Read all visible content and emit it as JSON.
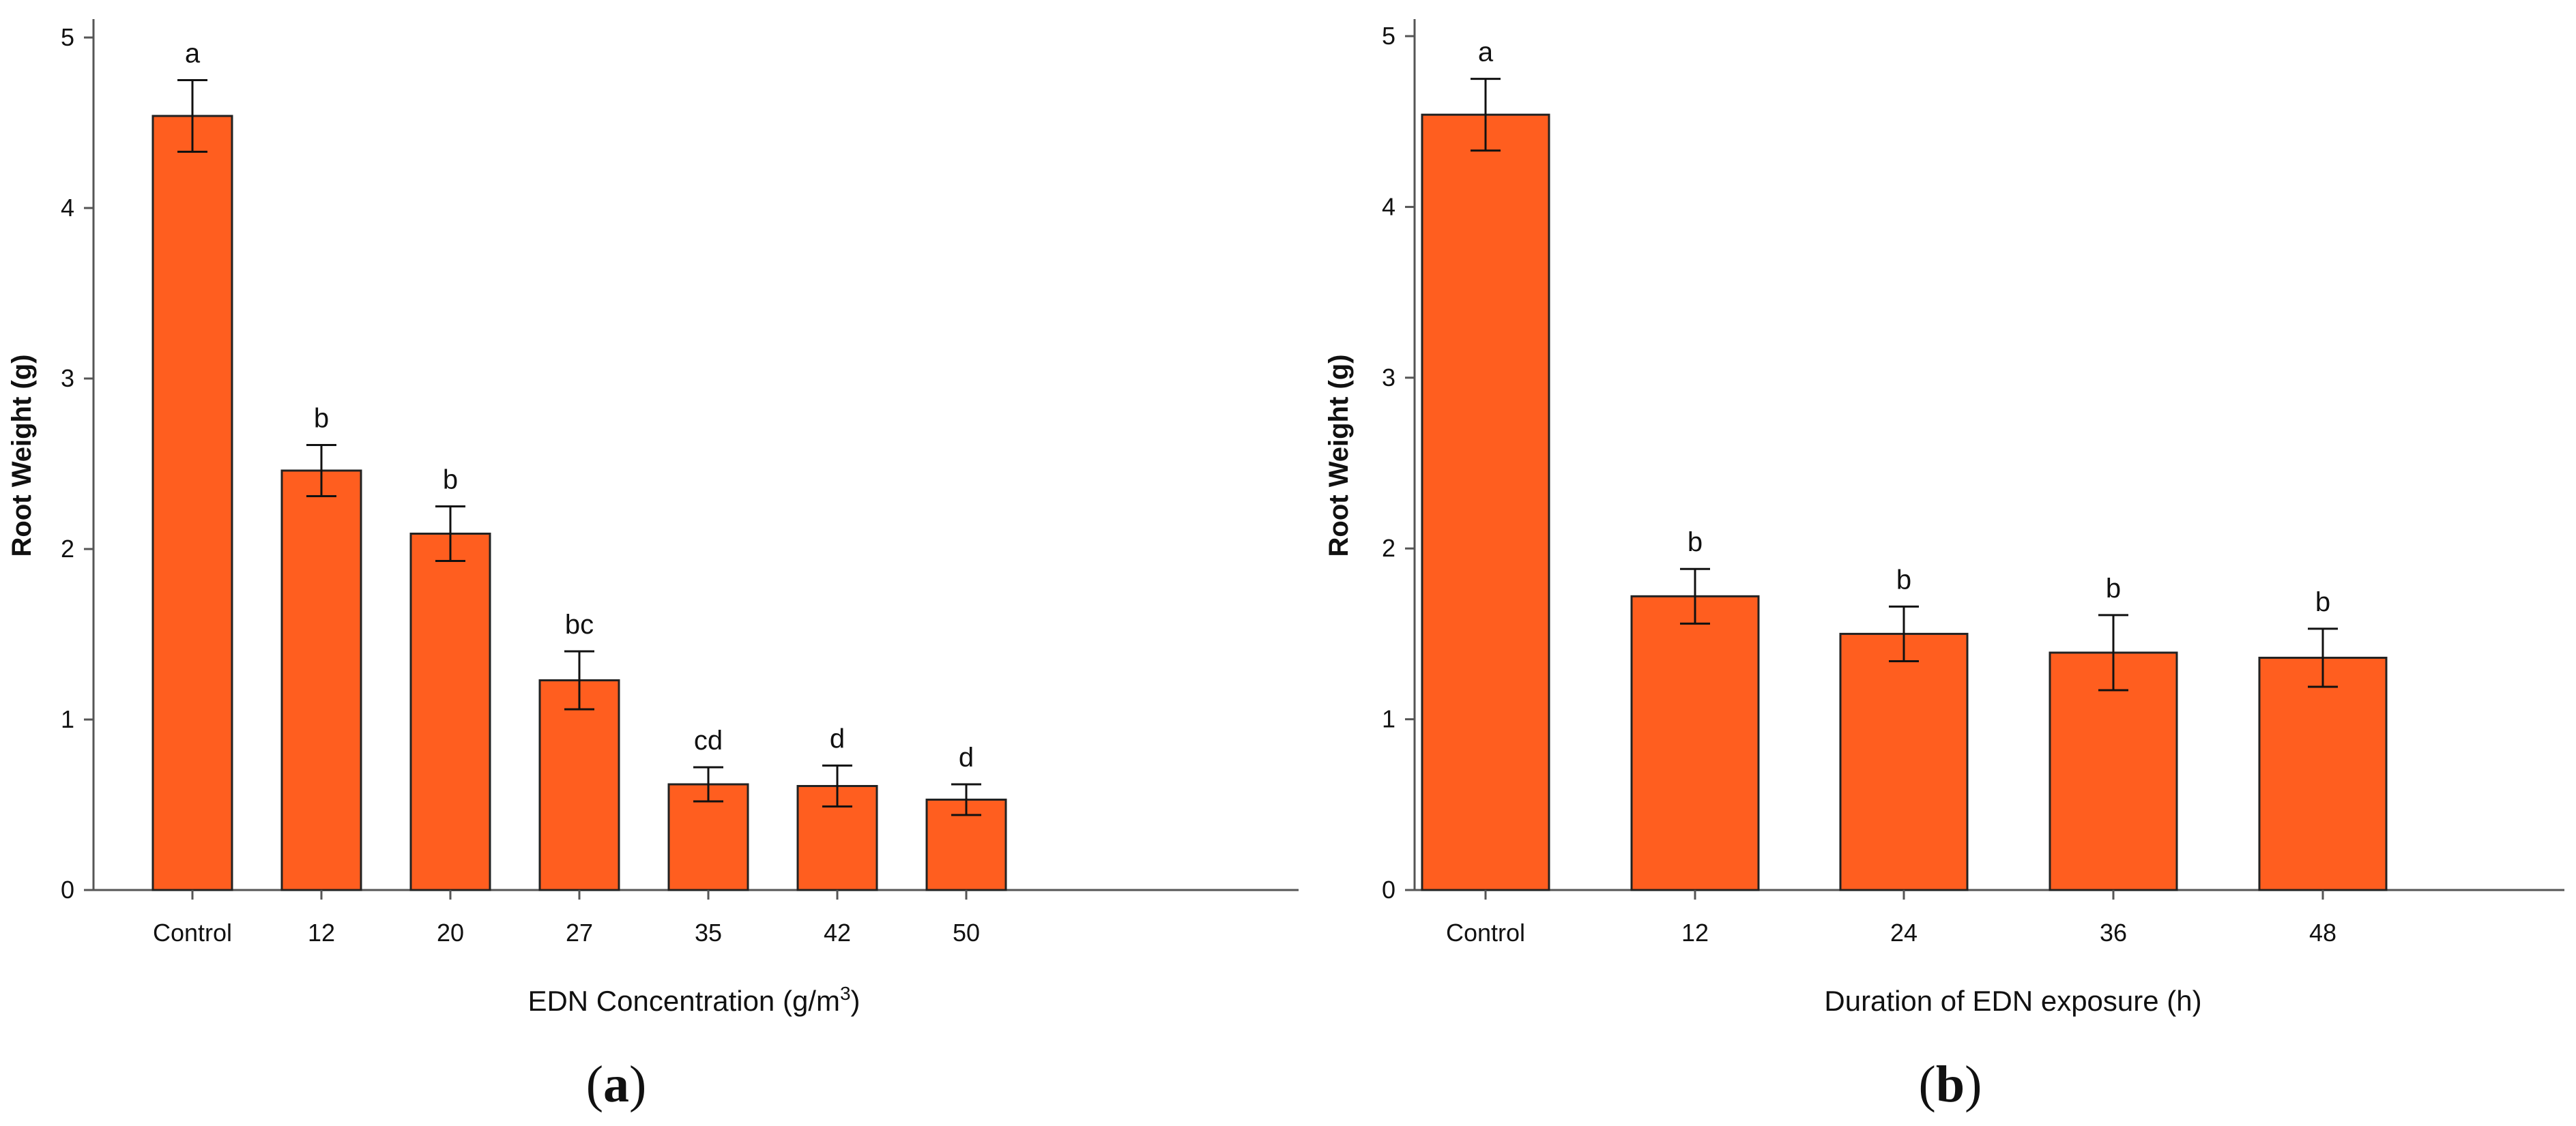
{
  "chart_data": [
    {
      "type": "bar",
      "panel_label_open": "(",
      "panel_label_letter": "a",
      "panel_label_close": ")",
      "ylabel": "Root Weight (g)",
      "xlabel": "EDN Concentration (g/m",
      "xlabel_sup": "3",
      "xlabel_close": ")",
      "ylim": [
        0,
        5
      ],
      "yticks": [
        "0",
        "1",
        "2",
        "3",
        "4",
        "5"
      ],
      "categories": [
        "Control",
        "12",
        "20",
        "27",
        "35",
        "42",
        "50"
      ],
      "values": [
        4.54,
        2.46,
        2.09,
        1.23,
        0.62,
        0.61,
        0.53
      ],
      "errors": [
        0.21,
        0.15,
        0.16,
        0.17,
        0.1,
        0.12,
        0.09
      ],
      "significance": [
        "a",
        "b",
        "b",
        "bc",
        "cd",
        "d",
        "d"
      ],
      "bar_color": "#ff5e1f"
    },
    {
      "type": "bar",
      "panel_label_open": "(",
      "panel_label_letter": "b",
      "panel_label_close": ")",
      "ylabel": "Root Weight (g)",
      "xlabel": "Duration of EDN exposure (h)",
      "ylim": [
        0,
        5
      ],
      "yticks": [
        "0",
        "1",
        "2",
        "3",
        "4",
        "5"
      ],
      "categories": [
        "Control",
        "12",
        "24",
        "36",
        "48"
      ],
      "values": [
        4.54,
        1.72,
        1.5,
        1.39,
        1.36
      ],
      "errors": [
        0.21,
        0.16,
        0.16,
        0.22,
        0.17
      ],
      "significance": [
        "a",
        "b",
        "b",
        "b",
        "b"
      ],
      "bar_color": "#ff5e1f"
    }
  ]
}
